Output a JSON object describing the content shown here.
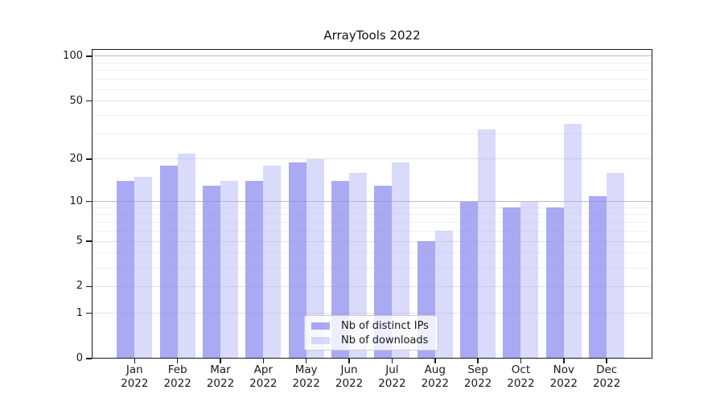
{
  "chart_data": {
    "type": "bar",
    "title": "ArrayTools 2022",
    "categories": [
      "Jan 2022",
      "Feb 2022",
      "Mar 2022",
      "Apr 2022",
      "May 2022",
      "Jun 2022",
      "Jul 2022",
      "Aug 2022",
      "Sep 2022",
      "Oct 2022",
      "Nov 2022",
      "Dec 2022"
    ],
    "series": [
      {
        "name": "Nb of distinct IPs",
        "color": "#a9a9f4",
        "color_rgba": "rgba(136,136,240,0.72)",
        "values": [
          14,
          18,
          13,
          14,
          19,
          14,
          13,
          5,
          10,
          9,
          9,
          11
        ]
      },
      {
        "name": "Nb of downloads",
        "color": "#d9d9f9",
        "color_rgba": "rgba(173,173,244,0.45)",
        "values": [
          15,
          22,
          14,
          18,
          20,
          16,
          19,
          6,
          32,
          10,
          35,
          16
        ]
      }
    ],
    "yscale": "log10(1+y)",
    "yticks": [
      0,
      1,
      2,
      5,
      10,
      20,
      50,
      100
    ],
    "yticks_minor": [
      3,
      4,
      6,
      7,
      8,
      9,
      30,
      40,
      60,
      70,
      80,
      90
    ],
    "yticks_emphasized": [
      10,
      100
    ],
    "ylim": [
      0,
      113
    ],
    "grid": true,
    "legend_position": "lower center"
  }
}
